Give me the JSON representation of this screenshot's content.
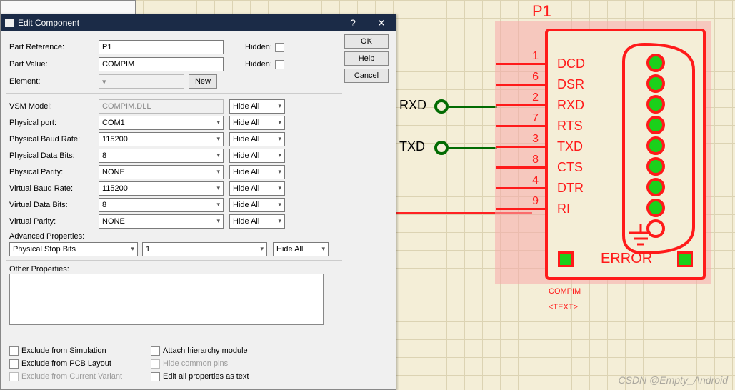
{
  "dialog": {
    "title": "Edit Component",
    "partRef": {
      "label": "Part Reference:",
      "value": "P1",
      "hidden": "Hidden:"
    },
    "partVal": {
      "label": "Part Value:",
      "value": "COMPIM",
      "hidden": "Hidden:"
    },
    "element": {
      "label": "Element:",
      "new": "New"
    },
    "vsm": {
      "label": "VSM Model:",
      "value": "COMPIM.DLL",
      "vis": "Hide All"
    },
    "pport": {
      "label": "Physical port:",
      "value": "COM1",
      "vis": "Hide All"
    },
    "pbaud": {
      "label": "Physical Baud Rate:",
      "value": "115200",
      "vis": "Hide All"
    },
    "pdata": {
      "label": "Physical Data Bits:",
      "value": "8",
      "vis": "Hide All"
    },
    "pparity": {
      "label": "Physical Parity:",
      "value": "NONE",
      "vis": "Hide All"
    },
    "vbaud": {
      "label": "Virtual Baud Rate:",
      "value": "115200",
      "vis": "Hide All"
    },
    "vdata": {
      "label": "Virtual Data Bits:",
      "value": "8",
      "vis": "Hide All"
    },
    "vparity": {
      "label": "Virtual Parity:",
      "value": "NONE",
      "vis": "Hide All"
    },
    "adv": {
      "label": "Advanced Properties:",
      "prop": "Physical Stop Bits",
      "val": "1",
      "vis": "Hide All"
    },
    "other": "Other Properties:",
    "cb": {
      "excSim": "Exclude from Simulation",
      "excPCB": "Exclude from PCB Layout",
      "excVar": "Exclude from Current Variant",
      "attach": "Attach hierarchy module",
      "hideCommon": "Hide common pins",
      "editAll": "Edit all properties as text"
    },
    "buttons": {
      "ok": "OK",
      "help": "Help",
      "cancel": "Cancel"
    }
  },
  "component": {
    "ref": "P1",
    "pins": [
      {
        "num": "1",
        "name": "DCD"
      },
      {
        "num": "6",
        "name": "DSR"
      },
      {
        "num": "2",
        "name": "RXD"
      },
      {
        "num": "7",
        "name": "RTS"
      },
      {
        "num": "3",
        "name": "TXD"
      },
      {
        "num": "8",
        "name": "CTS"
      },
      {
        "num": "4",
        "name": "DTR"
      },
      {
        "num": "9",
        "name": "RI"
      }
    ],
    "error": "ERROR",
    "value": "COMPIM",
    "text": "<TEXT>",
    "ext": {
      "rxd": "RXD",
      "txd": "TXD"
    }
  },
  "colors": {
    "red": "#ff1a1a",
    "green": "#1bd01b",
    "wire": "#026b02",
    "arrow": "#ff2222"
  },
  "watermark": "CSDN @Empty_Android"
}
